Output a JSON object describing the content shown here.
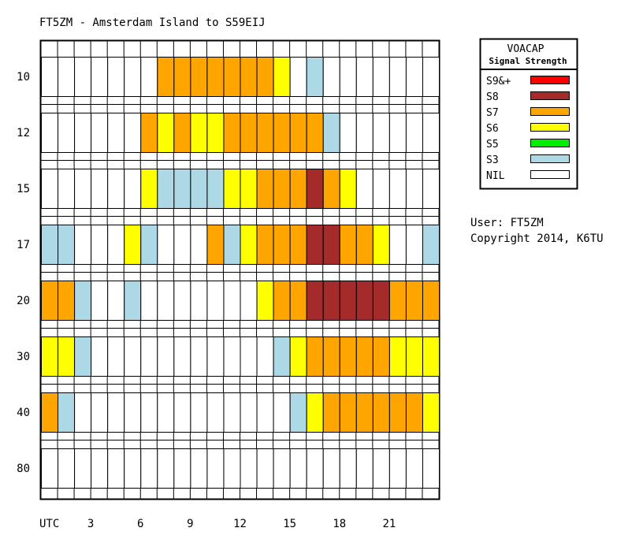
{
  "chart_data": {
    "type": "heatmap",
    "title": "FT5ZM - Amsterdam Island to S59EIJ",
    "x_axis_label": "UTC",
    "x_ticks": [
      "3",
      "6",
      "9",
      "12",
      "15",
      "18",
      "21"
    ],
    "hours": [
      0,
      1,
      2,
      3,
      4,
      5,
      6,
      7,
      8,
      9,
      10,
      11,
      12,
      13,
      14,
      15,
      16,
      17,
      18,
      19,
      20,
      21,
      22,
      23
    ],
    "bands": [
      {
        "name": "10",
        "levels": [
          "NIL",
          "NIL",
          "NIL",
          "NIL",
          "NIL",
          "NIL",
          "NIL",
          "S7",
          "S7",
          "S7",
          "S7",
          "S7",
          "S7",
          "S7",
          "S6",
          "NIL",
          "S3",
          "NIL",
          "NIL",
          "NIL",
          "NIL",
          "NIL",
          "NIL",
          "NIL"
        ]
      },
      {
        "name": "12",
        "levels": [
          "NIL",
          "NIL",
          "NIL",
          "NIL",
          "NIL",
          "NIL",
          "S7",
          "S6",
          "S7",
          "S6",
          "S6",
          "S7",
          "S7",
          "S7",
          "S7",
          "S7",
          "S7",
          "S3",
          "NIL",
          "NIL",
          "NIL",
          "NIL",
          "NIL",
          "NIL"
        ]
      },
      {
        "name": "15",
        "levels": [
          "NIL",
          "NIL",
          "NIL",
          "NIL",
          "NIL",
          "NIL",
          "S6",
          "S3",
          "S3",
          "S3",
          "S3",
          "S6",
          "S6",
          "S7",
          "S7",
          "S7",
          "S8",
          "S7",
          "S6",
          "NIL",
          "NIL",
          "NIL",
          "NIL",
          "NIL"
        ]
      },
      {
        "name": "17",
        "levels": [
          "S3",
          "S3",
          "NIL",
          "NIL",
          "NIL",
          "S6",
          "S3",
          "NIL",
          "NIL",
          "NIL",
          "S7",
          "S3",
          "S6",
          "S7",
          "S7",
          "S7",
          "S8",
          "S8",
          "S7",
          "S7",
          "S6",
          "NIL",
          "NIL",
          "S3"
        ]
      },
      {
        "name": "20",
        "levels": [
          "S7",
          "S7",
          "S3",
          "NIL",
          "NIL",
          "S3",
          "NIL",
          "NIL",
          "NIL",
          "NIL",
          "NIL",
          "NIL",
          "NIL",
          "S6",
          "S7",
          "S7",
          "S8",
          "S8",
          "S8",
          "S8",
          "S8",
          "S7",
          "S7",
          "S7"
        ]
      },
      {
        "name": "30",
        "levels": [
          "S6",
          "S6",
          "S3",
          "NIL",
          "NIL",
          "NIL",
          "NIL",
          "NIL",
          "NIL",
          "NIL",
          "NIL",
          "NIL",
          "NIL",
          "NIL",
          "S3",
          "S6",
          "S7",
          "S7",
          "S7",
          "S7",
          "S7",
          "S6",
          "S6",
          "S6"
        ]
      },
      {
        "name": "40",
        "levels": [
          "S7",
          "S3",
          "NIL",
          "NIL",
          "NIL",
          "NIL",
          "NIL",
          "NIL",
          "NIL",
          "NIL",
          "NIL",
          "NIL",
          "NIL",
          "NIL",
          "NIL",
          "S3",
          "S6",
          "S7",
          "S7",
          "S7",
          "S7",
          "S7",
          "S7",
          "S6"
        ]
      },
      {
        "name": "80",
        "levels": [
          "NIL",
          "NIL",
          "NIL",
          "NIL",
          "NIL",
          "NIL",
          "NIL",
          "NIL",
          "NIL",
          "NIL",
          "NIL",
          "NIL",
          "NIL",
          "NIL",
          "NIL",
          "NIL",
          "NIL",
          "NIL",
          "NIL",
          "NIL",
          "NIL",
          "NIL",
          "NIL",
          "NIL"
        ]
      }
    ],
    "legend": {
      "title": "VOACAP",
      "subtitle": "Signal Strength",
      "placement": "top-right",
      "entries": [
        {
          "label": "S9&+",
          "color": "#ff0000"
        },
        {
          "label": "S8",
          "color": "#a52a2a"
        },
        {
          "label": "S7",
          "color": "#ffa500"
        },
        {
          "label": "S6",
          "color": "#ffff00"
        },
        {
          "label": "S5",
          "color": "#00ee00"
        },
        {
          "label": "S3",
          "color": "#add8e6"
        },
        {
          "label": "NIL",
          "color": "#ffffff"
        }
      ]
    }
  },
  "info": {
    "user": "User: FT5ZM",
    "copyright": "Copyright 2014, K6TU"
  }
}
